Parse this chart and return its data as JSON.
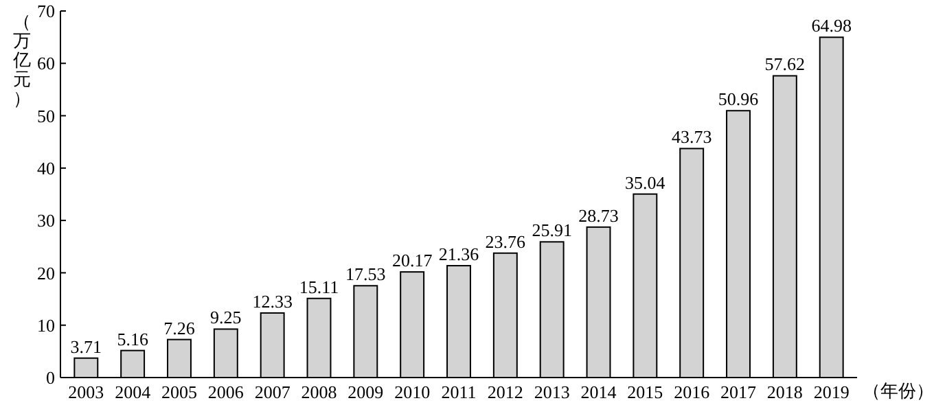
{
  "chart_data": {
    "type": "bar",
    "xlabel": "（年份）",
    "ylabel": "（万亿元）",
    "categories": [
      "2003",
      "2004",
      "2005",
      "2006",
      "2007",
      "2008",
      "2009",
      "2010",
      "2011",
      "2012",
      "2013",
      "2014",
      "2015",
      "2016",
      "2017",
      "2018",
      "2019"
    ],
    "values": [
      3.71,
      5.16,
      7.26,
      9.25,
      12.33,
      15.11,
      17.53,
      20.17,
      21.36,
      23.76,
      25.91,
      28.73,
      35.04,
      43.73,
      50.96,
      57.62,
      64.98
    ],
    "color": "#d3d3d3",
    "ylim": [
      0,
      70
    ],
    "yticks": [
      0,
      10,
      20,
      30,
      40,
      50,
      60,
      70
    ],
    "data_labels": true,
    "grid": false
  }
}
